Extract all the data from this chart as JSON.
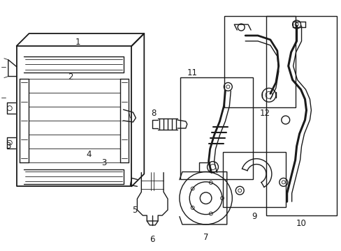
{
  "bg_color": "#ffffff",
  "line_color": "#1a1a1a",
  "figsize": [
    4.89,
    3.6
  ],
  "dpi": 100,
  "lw_main": 1.0,
  "lw_thin": 0.6,
  "lw_thick": 1.3,
  "font_size": 8.5
}
